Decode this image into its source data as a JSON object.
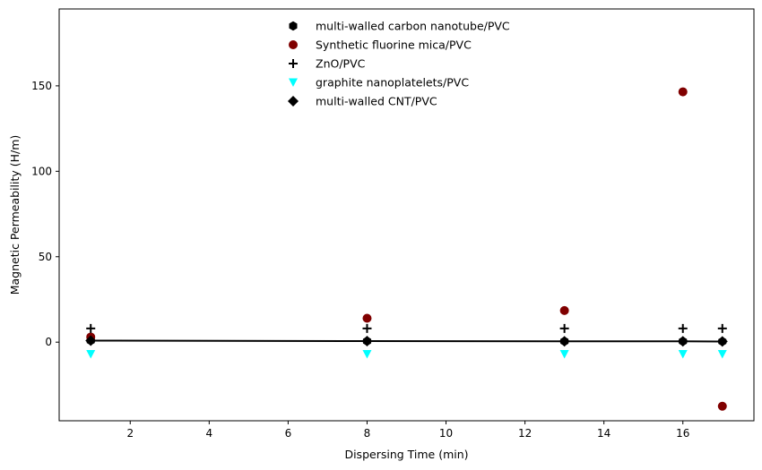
{
  "chart_data": {
    "type": "scatter",
    "title": "",
    "xlabel": "Dispersing Time (min)",
    "ylabel": "Magnetic Permeability (H/m)",
    "xlim": [
      0.2,
      17.8
    ],
    "ylim": [
      -46,
      195
    ],
    "xticks": [
      2,
      4,
      6,
      8,
      10,
      12,
      14,
      16
    ],
    "yticks": [
      0,
      50,
      100,
      150
    ],
    "grid": false,
    "legend_position": "top-center",
    "x": [
      1,
      8,
      13,
      16,
      17
    ],
    "series": [
      {
        "name": "multi-walled carbon nanotube/PVC",
        "marker": "hexagon",
        "color": "#000000",
        "line": false,
        "values": [
          0.9,
          0.6,
          0.5,
          0.5,
          0.4
        ]
      },
      {
        "name": "Synthetic fluorine mica/PVC",
        "marker": "circle",
        "color": "#800000",
        "line": false,
        "values": [
          3,
          14,
          18.5,
          146.5,
          -37.5
        ]
      },
      {
        "name": "ZnO/PVC",
        "marker": "plus",
        "color": "#000000",
        "line": false,
        "values": [
          8,
          8,
          8,
          8,
          8
        ]
      },
      {
        "name": "graphite nanoplatelets/PVC",
        "marker": "triangle-down",
        "color": "#00ffff",
        "line": false,
        "values": [
          -7,
          -7,
          -7,
          -7,
          -7
        ]
      },
      {
        "name": "multi-walled CNT/PVC",
        "marker": "diamond",
        "color": "#000000",
        "line": true,
        "values": [
          0.9,
          0.6,
          0.5,
          0.5,
          0.4
        ]
      }
    ]
  }
}
